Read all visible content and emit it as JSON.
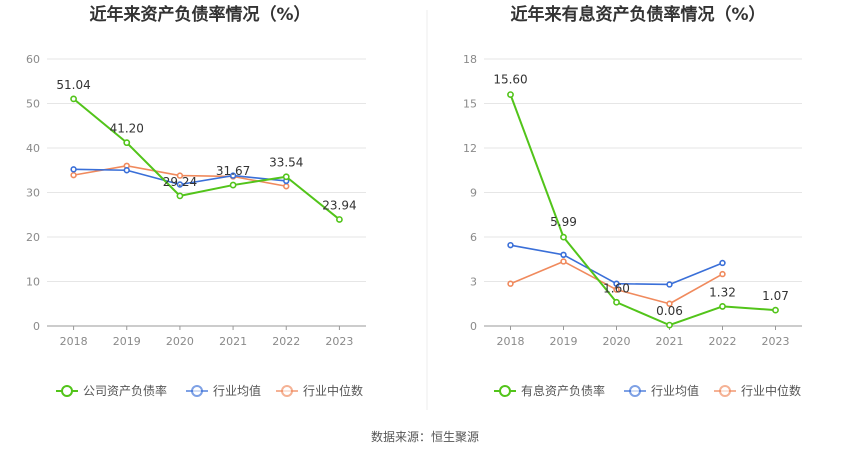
{
  "colors": {
    "main": "#52c41a",
    "avg": "#3a6fd8",
    "median": "#f08a5d",
    "grid": "#e6e6e6",
    "axis": "#999999"
  },
  "source": "数据来源：恒生聚源",
  "chart_data": [
    {
      "type": "line",
      "title": "近年来资产负债率情况（%）",
      "categories": [
        "2018",
        "2019",
        "2020",
        "2021",
        "2022",
        "2023"
      ],
      "ylim": [
        0,
        60
      ],
      "yticks": [
        "0",
        "10",
        "20",
        "30",
        "40",
        "50",
        "60"
      ],
      "grid": true,
      "legend_position": "bottom",
      "series": [
        {
          "name": "公司资产负债率",
          "color": "#52c41a",
          "values": [
            51.04,
            41.2,
            29.24,
            31.67,
            33.54,
            23.94
          ],
          "labels": [
            "51.04",
            "41.20",
            "29.24",
            "31.67",
            "33.54",
            "23.94"
          ]
        },
        {
          "name": "行业均值",
          "color": "#3a6fd8",
          "values": [
            35.2,
            35.0,
            31.8,
            33.8,
            32.6,
            null
          ]
        },
        {
          "name": "行业中位数",
          "color": "#f08a5d",
          "values": [
            33.9,
            36.0,
            33.8,
            33.6,
            31.4,
            null
          ]
        }
      ]
    },
    {
      "type": "line",
      "title": "近年来有息资产负债率情况（%）",
      "categories": [
        "2018",
        "2019",
        "2020",
        "2021",
        "2022",
        "2023"
      ],
      "ylim": [
        0,
        18
      ],
      "yticks": [
        "0",
        "3",
        "6",
        "9",
        "12",
        "15",
        "18"
      ],
      "grid": true,
      "legend_position": "bottom",
      "series": [
        {
          "name": "有息资产负债率",
          "color": "#52c41a",
          "values": [
            15.6,
            5.99,
            1.6,
            0.06,
            1.32,
            1.07
          ],
          "labels": [
            "15.60",
            "5.99",
            "1.60",
            "0.06",
            "1.32",
            "1.07"
          ]
        },
        {
          "name": "行业均值",
          "color": "#3a6fd8",
          "values": [
            5.45,
            4.8,
            2.85,
            2.8,
            4.25,
            null
          ]
        },
        {
          "name": "行业中位数",
          "color": "#f08a5d",
          "values": [
            2.85,
            4.35,
            2.45,
            1.5,
            3.5,
            null
          ]
        }
      ]
    }
  ]
}
